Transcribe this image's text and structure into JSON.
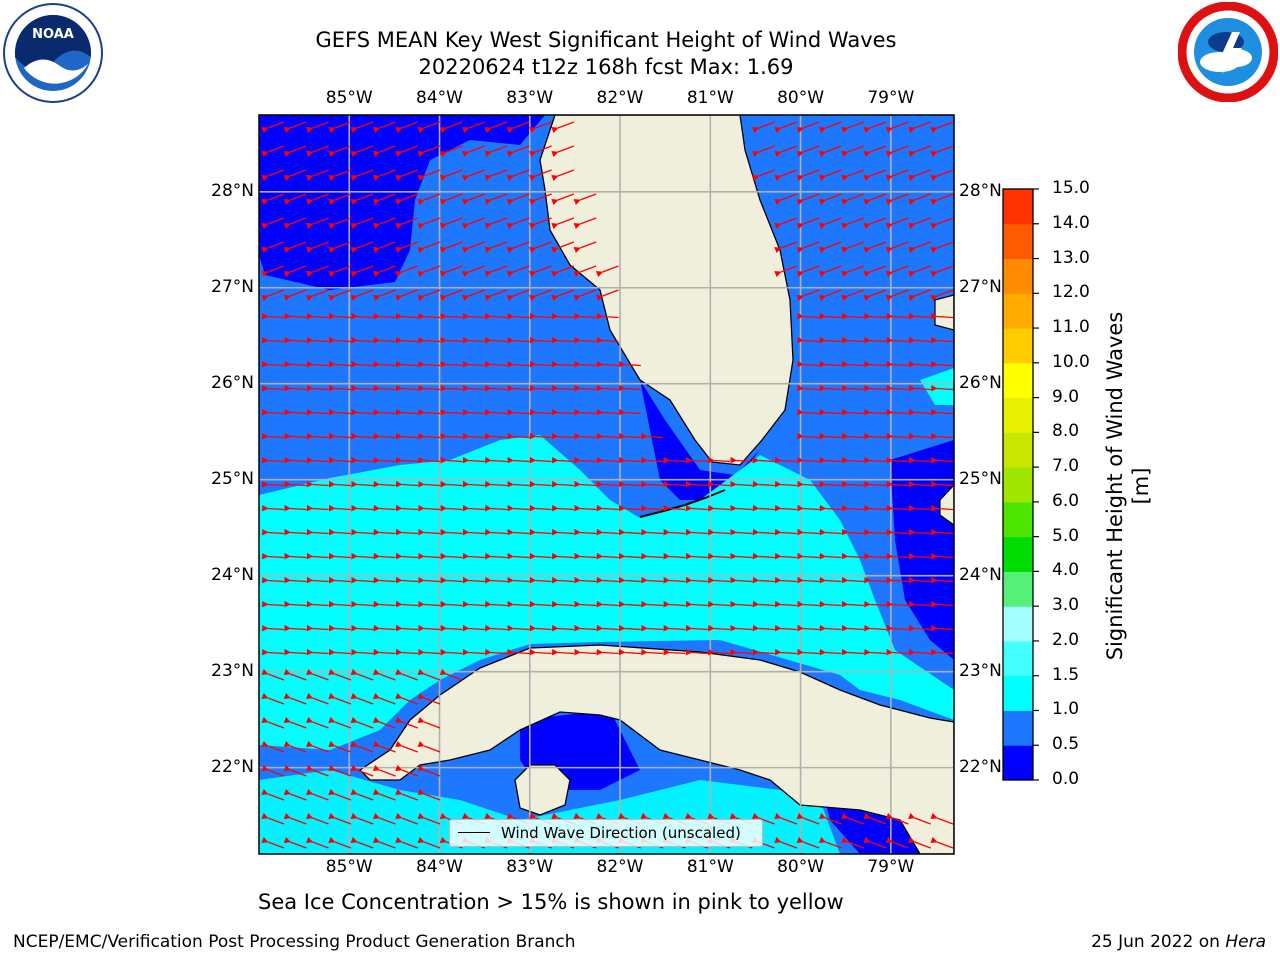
{
  "title": {
    "line1": "GEFS MEAN Key West Significant Height of Wind Waves",
    "line2": "20220624 t12z 168h fcst   Max: 1.69"
  },
  "map": {
    "lon_labels": [
      "85°W",
      "84°W",
      "83°W",
      "82°W",
      "81°W",
      "80°W",
      "79°W"
    ],
    "lat_labels": [
      "28°N",
      "27°N",
      "26°N",
      "25°N",
      "24°N",
      "23°N",
      "22°N"
    ],
    "lon_values": [
      -85,
      -84,
      -83,
      -82,
      -81,
      -80,
      -79
    ],
    "lat_values": [
      28,
      27,
      26,
      25,
      24,
      23,
      22
    ],
    "lon_range": [
      -86,
      -78.3
    ],
    "lat_range": [
      21.1,
      28.8
    ],
    "land_color": "#efefdc",
    "grid_color": "#b0b0b0",
    "arrow_color": "#ff0000",
    "arrow_direction": "westward"
  },
  "legend": {
    "label": "Wind Wave Direction (unscaled)"
  },
  "colorbar": {
    "title": "Significant Height of Wind Waves [m]",
    "ticks": [
      "15.0",
      "14.0",
      "13.0",
      "12.0",
      "11.0",
      "10.0",
      "9.0",
      "8.0",
      "7.0",
      "6.0",
      "5.0",
      "4.0",
      "3.0",
      "2.0",
      "1.5",
      "1.0",
      "0.5",
      "0.0"
    ],
    "colors": [
      "#0000ff",
      "#1e78ff",
      "#00ffff",
      "#44ffff",
      "#a6ffff",
      "#55f07a",
      "#00dc00",
      "#4ee600",
      "#a0e600",
      "#c8e600",
      "#e6f000",
      "#ffff00",
      "#ffcc00",
      "#ffaa00",
      "#ff8c00",
      "#ff5a00",
      "#ff3200"
    ]
  },
  "ice_note": "Sea Ice Concentration > 15% is shown in pink to yellow",
  "footer": {
    "left": "NCEP/EMC/Verification Post Processing Product Generation Branch",
    "date": "25 Jun 2022 on ",
    "host": "Hera"
  },
  "logos": {
    "left": "noaa-logo",
    "right": "nws-logo"
  }
}
